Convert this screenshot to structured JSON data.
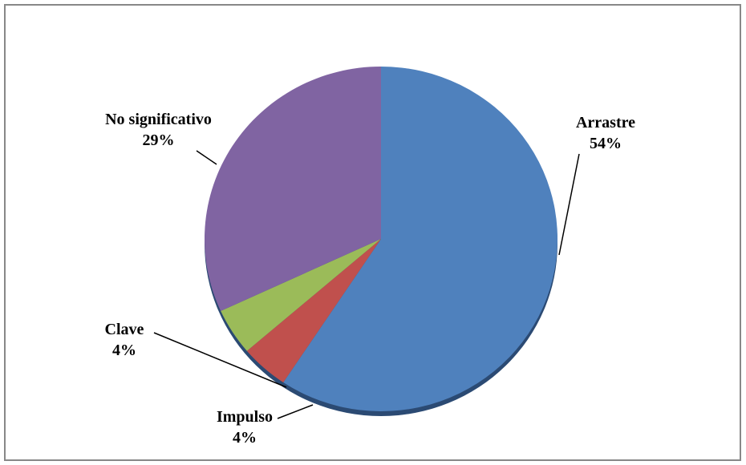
{
  "chart_data": {
    "type": "pie",
    "categories": [
      "Arrastre",
      "Impulso",
      "Clave",
      "No significativo"
    ],
    "values": [
      54,
      4,
      4,
      29
    ],
    "value_labels": [
      "54%",
      "4%",
      "4%",
      "29%"
    ],
    "colors": [
      "#4f81bd",
      "#c0504d",
      "#9bbb59",
      "#8064a2"
    ]
  }
}
